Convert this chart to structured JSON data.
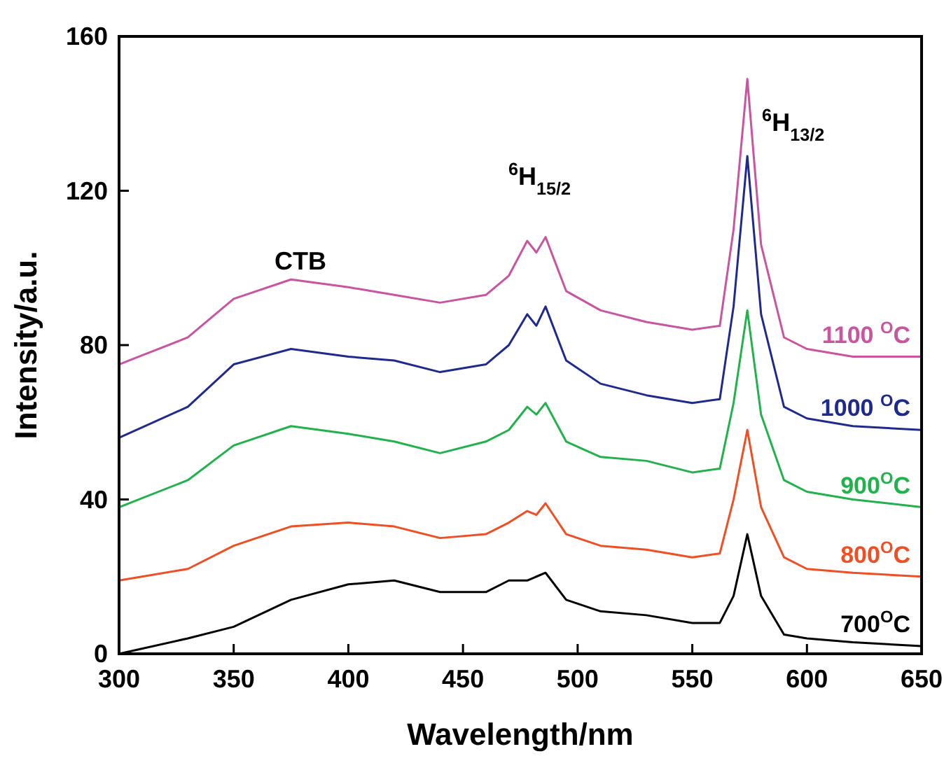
{
  "chart_data": {
    "type": "line",
    "xlabel": "Wavelength/nm",
    "ylabel": "Intensity/a.u.",
    "xlim": [
      300,
      650
    ],
    "xticks": [
      300,
      350,
      400,
      450,
      500,
      550,
      600,
      650
    ],
    "ylim": [
      0,
      160
    ],
    "yticks": [
      0,
      40,
      80,
      120,
      160
    ],
    "grid": false,
    "marker": "none",
    "line_style": "solid",
    "x": [
      300,
      330,
      350,
      375,
      400,
      420,
      440,
      460,
      470,
      478,
      482,
      486,
      495,
      510,
      530,
      550,
      562,
      568,
      574,
      580,
      590,
      600,
      620,
      650
    ],
    "series": [
      {
        "name": "700$^{O}$C",
        "color": "#000000",
        "values": [
          0,
          4,
          7,
          14,
          18,
          19,
          16,
          16,
          19,
          19,
          20,
          21,
          14,
          11,
          10,
          8,
          8,
          15,
          31,
          15,
          5,
          4,
          3,
          2
        ]
      },
      {
        "name": "800$^{O}$C",
        "color": "#f04e23",
        "values": [
          19,
          22,
          28,
          33,
          34,
          33,
          30,
          31,
          34,
          37,
          36,
          39,
          31,
          28,
          27,
          25,
          26,
          40,
          58,
          38,
          25,
          22,
          21,
          20
        ]
      },
      {
        "name": "900$^{O}$C",
        "color": "#22b24c",
        "values": [
          38,
          45,
          54,
          59,
          57,
          55,
          52,
          55,
          58,
          64,
          62,
          65,
          55,
          51,
          50,
          47,
          48,
          65,
          89,
          62,
          45,
          42,
          40,
          38
        ]
      },
      {
        "name": "1000 $^{O}$C",
        "color": "#1f2a8e",
        "values": [
          56,
          64,
          75,
          79,
          77,
          76,
          73,
          75,
          80,
          88,
          85,
          90,
          76,
          70,
          67,
          65,
          66,
          90,
          129,
          88,
          64,
          61,
          59,
          58
        ]
      },
      {
        "name": "1100 $^{O}$C",
        "color": "#c9549f",
        "values": [
          75,
          82,
          92,
          97,
          95,
          93,
          91,
          93,
          98,
          107,
          104,
          108,
          94,
          89,
          86,
          84,
          85,
          110,
          149,
          106,
          82,
          79,
          77,
          77
        ]
      }
    ],
    "annotations": [
      "CTB",
      "$^{6}$H$_{15/2}$",
      "$^{6}$H$_{13/2}$"
    ]
  }
}
